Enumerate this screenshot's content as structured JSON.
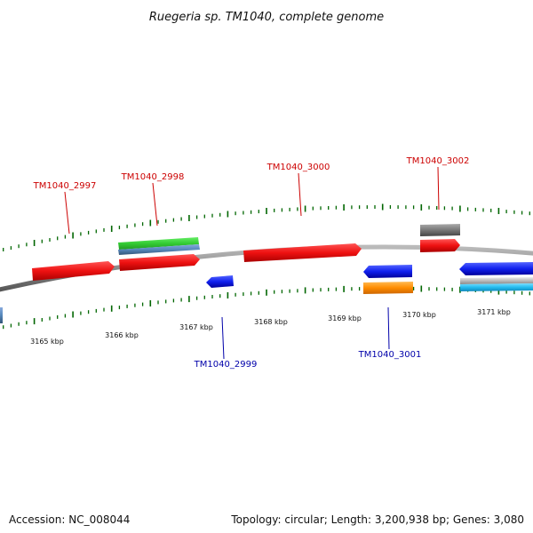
{
  "title": "Ruegeria sp. TM1040, complete genome",
  "footer": {
    "accession": "Accession: NC_008044",
    "summary": "Topology: circular; Length: 3,200,938 bp; Genes: 3,080"
  },
  "colors": {
    "forward_label": "#cc0000",
    "reverse_label": "#0000aa",
    "tick": "#006600",
    "backbone": "#888888",
    "red": "#ee1111",
    "blue": "#1020ee",
    "green": "#33cc33",
    "steel": "#5588bb",
    "grey": "#777777",
    "orange": "#ff8c00",
    "cyan": "#22bbee",
    "silver": "#bbbbbb"
  },
  "kbp_labels": [
    "3165 kbp",
    "3166 kbp",
    "3167 kbp",
    "3168 kbp",
    "3169 kbp",
    "3170 kbp",
    "3171 kbp"
  ],
  "gene_labels": {
    "top": [
      "TM1040_2997",
      "TM1040_2998",
      "TM1040_3000",
      "TM1040_3002"
    ],
    "bottom": [
      "TM1040_2999",
      "TM1040_3001"
    ]
  }
}
